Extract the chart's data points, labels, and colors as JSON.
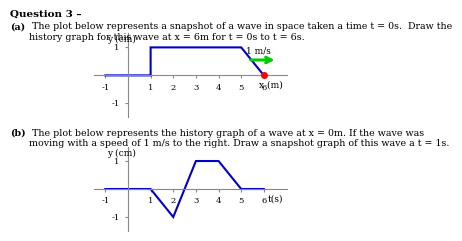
{
  "question_header": "Question 3 –",
  "title_a_bold": "(a)",
  "title_a_rest": " The plot below represents a snapshot of a wave in space taken a time t = 0s.  Draw the\nhistory graph for this wave at x = 6m for t = 0s to t = 6s.",
  "title_b_bold": "(b)",
  "title_b_rest": " The plot below represents the history graph of a wave at x = 0m. If the wave was\nmoving with a speed of 1 m/s to the right. Draw a snapshot graph of this wave a t = 1s.",
  "wave_a_x": [
    -1,
    1,
    1,
    5,
    6
  ],
  "wave_a_y": [
    0,
    0,
    1,
    1,
    0
  ],
  "wave_b_t": [
    -1,
    1,
    2,
    3,
    4,
    5,
    6
  ],
  "wave_b_y": [
    0,
    0,
    -1,
    1,
    1,
    0,
    0
  ],
  "line_color": "#0000cc",
  "axis_color": "#888888",
  "arrow_color": "#00cc00",
  "dot_color": "#ff0000",
  "xlim_a": [
    -1.5,
    7.0
  ],
  "ylim_a": [
    -1.5,
    1.5
  ],
  "xlim_b": [
    -1.5,
    7.0
  ],
  "ylim_b": [
    -1.5,
    1.5
  ],
  "xlabel_a": "x (m)",
  "ylabel_a": "y (cm)",
  "xlabel_b": "t(s)",
  "ylabel_b": "y (cm)",
  "xticks_a": [
    -1,
    1,
    2,
    3,
    4,
    5,
    6
  ],
  "yticks_a": [
    -1,
    1
  ],
  "xticks_b": [
    -1,
    1,
    2,
    3,
    4,
    5,
    6
  ],
  "yticks_b": [
    -1,
    1
  ],
  "speed_label": "1 m/s",
  "tick_fontsize": 6.0,
  "label_fontsize": 6.5,
  "text_fontsize": 6.8,
  "header_fontsize": 7.5,
  "line_width": 1.5
}
